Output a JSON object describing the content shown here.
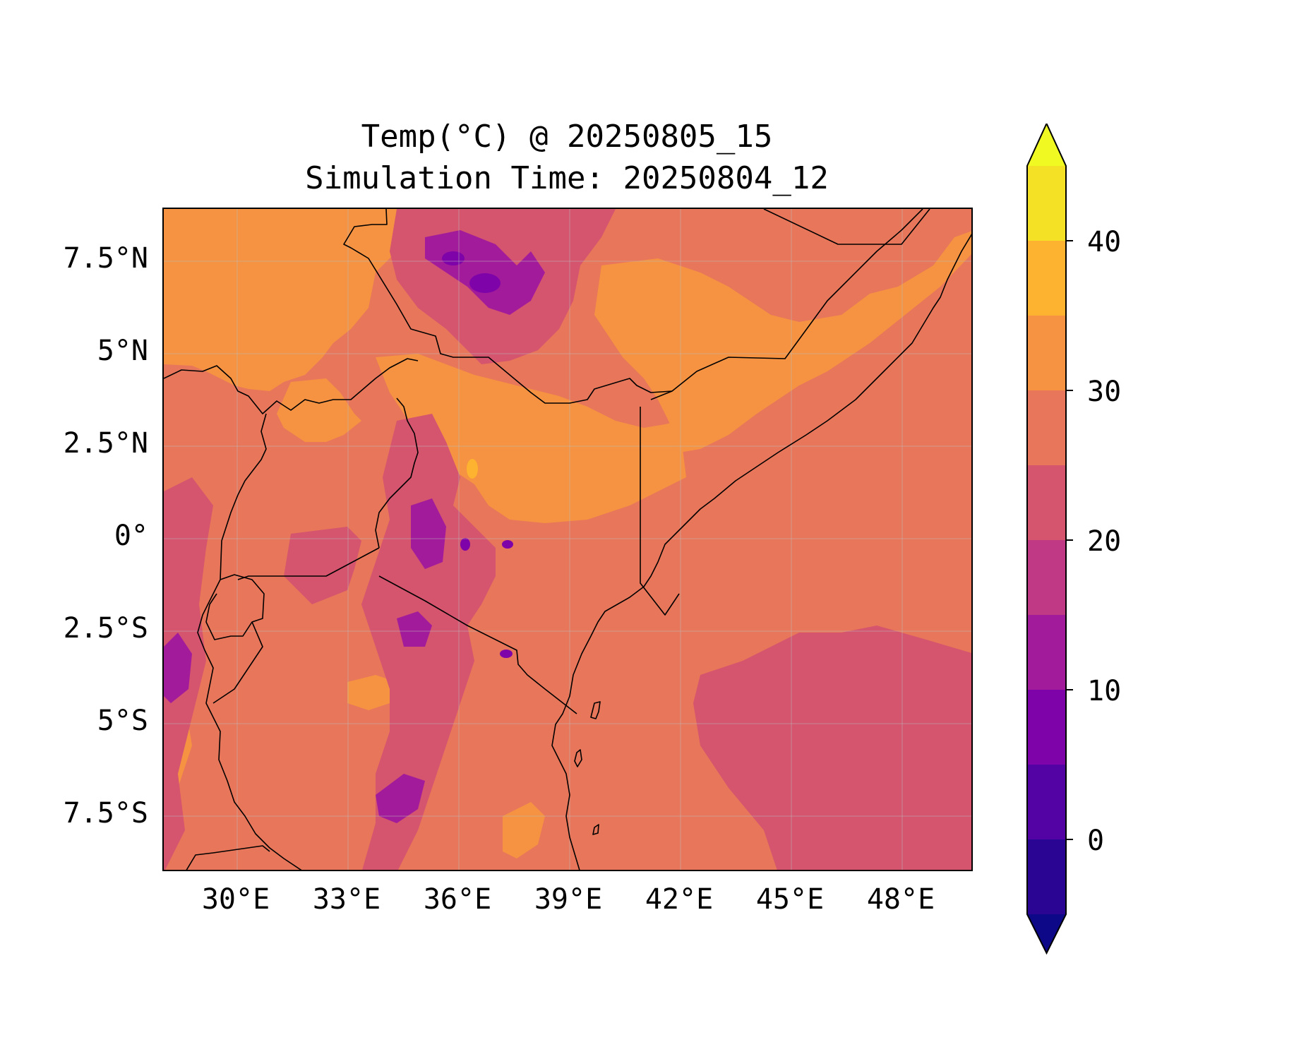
{
  "figure": {
    "title_line1": "Temp(°C) @ 20250805_15",
    "title_line2": "Simulation Time: 20250804_12"
  },
  "map": {
    "variable": "Temperature (°C)",
    "lon_ticks": [
      "30°E",
      "33°E",
      "36°E",
      "39°E",
      "42°E",
      "45°E",
      "48°E"
    ],
    "lat_ticks": [
      "7.5°N",
      "5°N",
      "2.5°N",
      "0°",
      "2.5°S",
      "5°S",
      "7.5°S"
    ],
    "lon_range": [
      28,
      50
    ],
    "lat_range": [
      -9,
      9
    ],
    "gridlines": true,
    "borders_color": "#000000"
  },
  "colorbar": {
    "orientation": "vertical",
    "extend": "both",
    "tick_labels": [
      "0",
      "10",
      "20",
      "30",
      "40"
    ],
    "levels": [
      -5,
      0,
      5,
      10,
      15,
      20,
      25,
      30,
      35,
      40,
      45
    ],
    "colors": [
      "#0d0887",
      "#2a0593",
      "#5302a3",
      "#7e03a8",
      "#a11b9b",
      "#bf3984",
      "#d5546e",
      "#e8765a",
      "#f59342",
      "#fdb32f",
      "#f4e125",
      "#f0f921"
    ]
  }
}
